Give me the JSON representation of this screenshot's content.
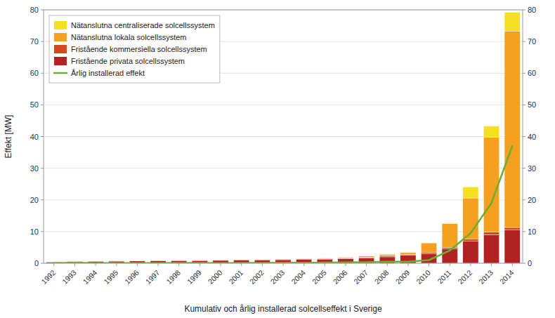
{
  "chart_data": {
    "type": "bar",
    "stacked": true,
    "xlabel": "Kumulativ och årlig installerad solcellseffekt i Sverige",
    "ylabel": "Effekt [MW]",
    "categories": [
      "1992",
      "1993",
      "1994",
      "1995",
      "1996",
      "1997",
      "1998",
      "1999",
      "2000",
      "2001",
      "2002",
      "2003",
      "2004",
      "2005",
      "2006",
      "2007",
      "2008",
      "2009",
      "2010",
      "2011",
      "2012",
      "2013",
      "2014"
    ],
    "series": [
      {
        "name": "Fristående privata solcellssystem",
        "color": "#b22222",
        "values": [
          0.4,
          0.5,
          0.6,
          0.65,
          0.7,
          0.75,
          0.8,
          0.85,
          0.9,
          0.95,
          1.0,
          1.1,
          1.2,
          1.3,
          1.5,
          1.7,
          2.0,
          2.5,
          3.0,
          4.5,
          7.0,
          9.0,
          10.5
        ]
      },
      {
        "name": "Fristående kommersiella solcellssystem",
        "color": "#d44820",
        "values": [
          0.05,
          0.05,
          0.05,
          0.07,
          0.08,
          0.08,
          0.1,
          0.1,
          0.12,
          0.12,
          0.15,
          0.15,
          0.18,
          0.18,
          0.2,
          0.25,
          0.3,
          0.35,
          0.4,
          0.5,
          0.6,
          0.8,
          0.8
        ]
      },
      {
        "name": "Nätanslutna lokala solcellssystem",
        "color": "#f5a020",
        "values": [
          0.0,
          0.0,
          0.0,
          0.0,
          0.0,
          0.0,
          0.0,
          0.0,
          0.0,
          0.0,
          0.0,
          0.0,
          0.05,
          0.1,
          0.15,
          0.3,
          0.5,
          0.5,
          3.0,
          7.5,
          13.0,
          30.0,
          62.0
        ]
      },
      {
        "name": "Nätanslutna centraliserade solcellssystem",
        "color": "#f5e020",
        "values": [
          0.0,
          0.0,
          0.0,
          0.0,
          0.0,
          0.0,
          0.0,
          0.0,
          0.0,
          0.0,
          0.0,
          0.0,
          0.0,
          0.0,
          0.0,
          0.0,
          0.0,
          0.0,
          0.0,
          0.2,
          3.5,
          3.5,
          5.9
        ]
      },
      {
        "name": "Årlig installerad effekt",
        "color": "#6ab030",
        "type": "line",
        "axis": "y2",
        "values": [
          0.08,
          0.15,
          0.08,
          0.08,
          0.08,
          0.08,
          0.1,
          0.1,
          0.08,
          0.1,
          0.12,
          0.15,
          0.18,
          0.2,
          0.25,
          0.35,
          0.5,
          0.5,
          1.0,
          4.0,
          9.5,
          19.0,
          37.0
        ]
      }
    ],
    "ylim": [
      0,
      80
    ],
    "yticks": [
      0,
      10,
      20,
      30,
      40,
      50,
      60,
      70,
      80
    ],
    "y2lim": [
      0,
      80
    ],
    "y2ticks": [
      0,
      10,
      20,
      30,
      40,
      50,
      60,
      70,
      80
    ],
    "grid": true,
    "legend": "upper left"
  }
}
